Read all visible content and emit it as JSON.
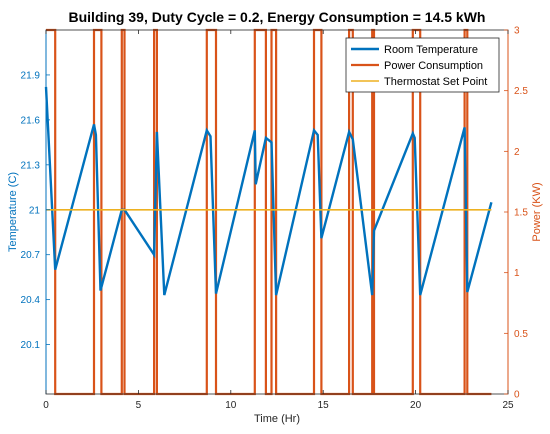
{
  "chart_data": {
    "type": "line",
    "title": "Building 39, Duty Cycle = 0.2, Energy Consumption = 14.5 kWh",
    "xlabel": "Time (Hr)",
    "ylabel_left": "Temperature (C)",
    "ylabel_right": "Power (KW)",
    "xlim": [
      0,
      25
    ],
    "ylim_left": [
      19.77,
      22.2
    ],
    "ylim_right": [
      0,
      3
    ],
    "x_ticks": [
      0,
      5,
      10,
      15,
      20,
      25
    ],
    "y_left_ticks": [
      "20.1",
      "20.4",
      "20.7",
      "21",
      "21.3",
      "21.6",
      "21.9"
    ],
    "y_left_tick_values": [
      20.1,
      20.4,
      20.7,
      21.0,
      21.3,
      21.6,
      21.9
    ],
    "y_right_ticks": [
      "0",
      "0.5",
      "1",
      "1.5",
      "2",
      "2.5",
      "3"
    ],
    "y_right_tick_values": [
      0,
      0.5,
      1,
      1.5,
      2,
      2.5,
      3
    ],
    "grid": false,
    "legend_position": "top-right",
    "series": [
      {
        "name": "Room Temperature",
        "axis": "left",
        "color": "#0072BD",
        "x": [
          0,
          0.5,
          2.6,
          2.7,
          2.95,
          4.1,
          4.25,
          5.85,
          6.0,
          6.4,
          8.7,
          8.9,
          9.2,
          11.3,
          11.35,
          11.9,
          12.2,
          12.45,
          14.5,
          14.7,
          14.9,
          16.4,
          16.6,
          17.65,
          17.75,
          19.85,
          19.95,
          20.25,
          22.65,
          22.8,
          24.1
        ],
        "y": [
          21.82,
          20.6,
          21.57,
          21.5,
          20.46,
          21.0,
          21.0,
          20.7,
          21.52,
          20.43,
          21.53,
          21.49,
          20.44,
          21.53,
          21.17,
          21.48,
          21.45,
          20.43,
          21.53,
          21.5,
          20.81,
          21.52,
          21.47,
          20.43,
          20.86,
          21.51,
          21.48,
          20.43,
          21.55,
          20.45,
          21.05
        ]
      },
      {
        "name": "Power Consumption",
        "axis": "right",
        "color": "#D95319",
        "x": [
          0,
          0.5,
          0.5,
          2.6,
          2.6,
          3.0,
          3.0,
          4.1,
          4.1,
          4.25,
          4.25,
          5.85,
          5.85,
          6.0,
          6.0,
          8.7,
          8.7,
          9.2,
          9.2,
          11.3,
          11.3,
          11.9,
          11.9,
          12.2,
          12.2,
          12.45,
          12.45,
          14.5,
          14.5,
          14.9,
          14.9,
          16.4,
          16.4,
          16.6,
          16.6,
          17.65,
          17.65,
          17.75,
          17.75,
          19.85,
          19.85,
          20.25,
          20.25,
          22.65,
          22.65,
          22.8,
          22.8,
          24.1
        ],
        "y": [
          3,
          3,
          0,
          0,
          3,
          3,
          0,
          0,
          3,
          3,
          0,
          0,
          3,
          3,
          0,
          0,
          3,
          3,
          0,
          0,
          3,
          3,
          0,
          0,
          3,
          3,
          0,
          0,
          3,
          3,
          0,
          0,
          3,
          3,
          0,
          0,
          3,
          3,
          0,
          0,
          3,
          3,
          0,
          0,
          3,
          3,
          0,
          0
        ]
      },
      {
        "name": "Thermostat Set Point",
        "axis": "left",
        "color": "#EDB120",
        "x": [
          0,
          24.1
        ],
        "y": [
          21.0,
          21.0
        ]
      }
    ]
  }
}
